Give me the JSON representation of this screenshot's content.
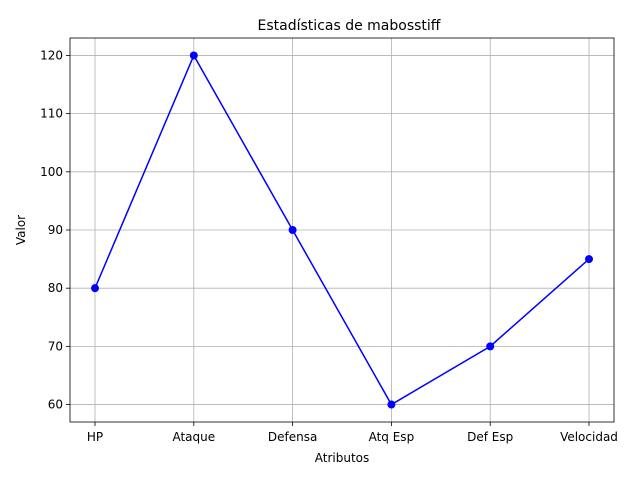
{
  "chart_data": {
    "type": "line",
    "title": "Estadísticas de mabosstiff",
    "xlabel": "Atributos",
    "ylabel": "Valor",
    "categories": [
      "HP",
      "Ataque",
      "Defensa",
      "Atq Esp",
      "Def Esp",
      "Velocidad"
    ],
    "series": [
      {
        "values": [
          80,
          120,
          90,
          60,
          70,
          85
        ],
        "color": "#0000ff",
        "marker": "circle"
      }
    ],
    "ylim": [
      57,
      123
    ],
    "yticks": [
      60,
      70,
      80,
      90,
      100,
      110,
      120
    ],
    "grid": true,
    "legend": "none"
  }
}
